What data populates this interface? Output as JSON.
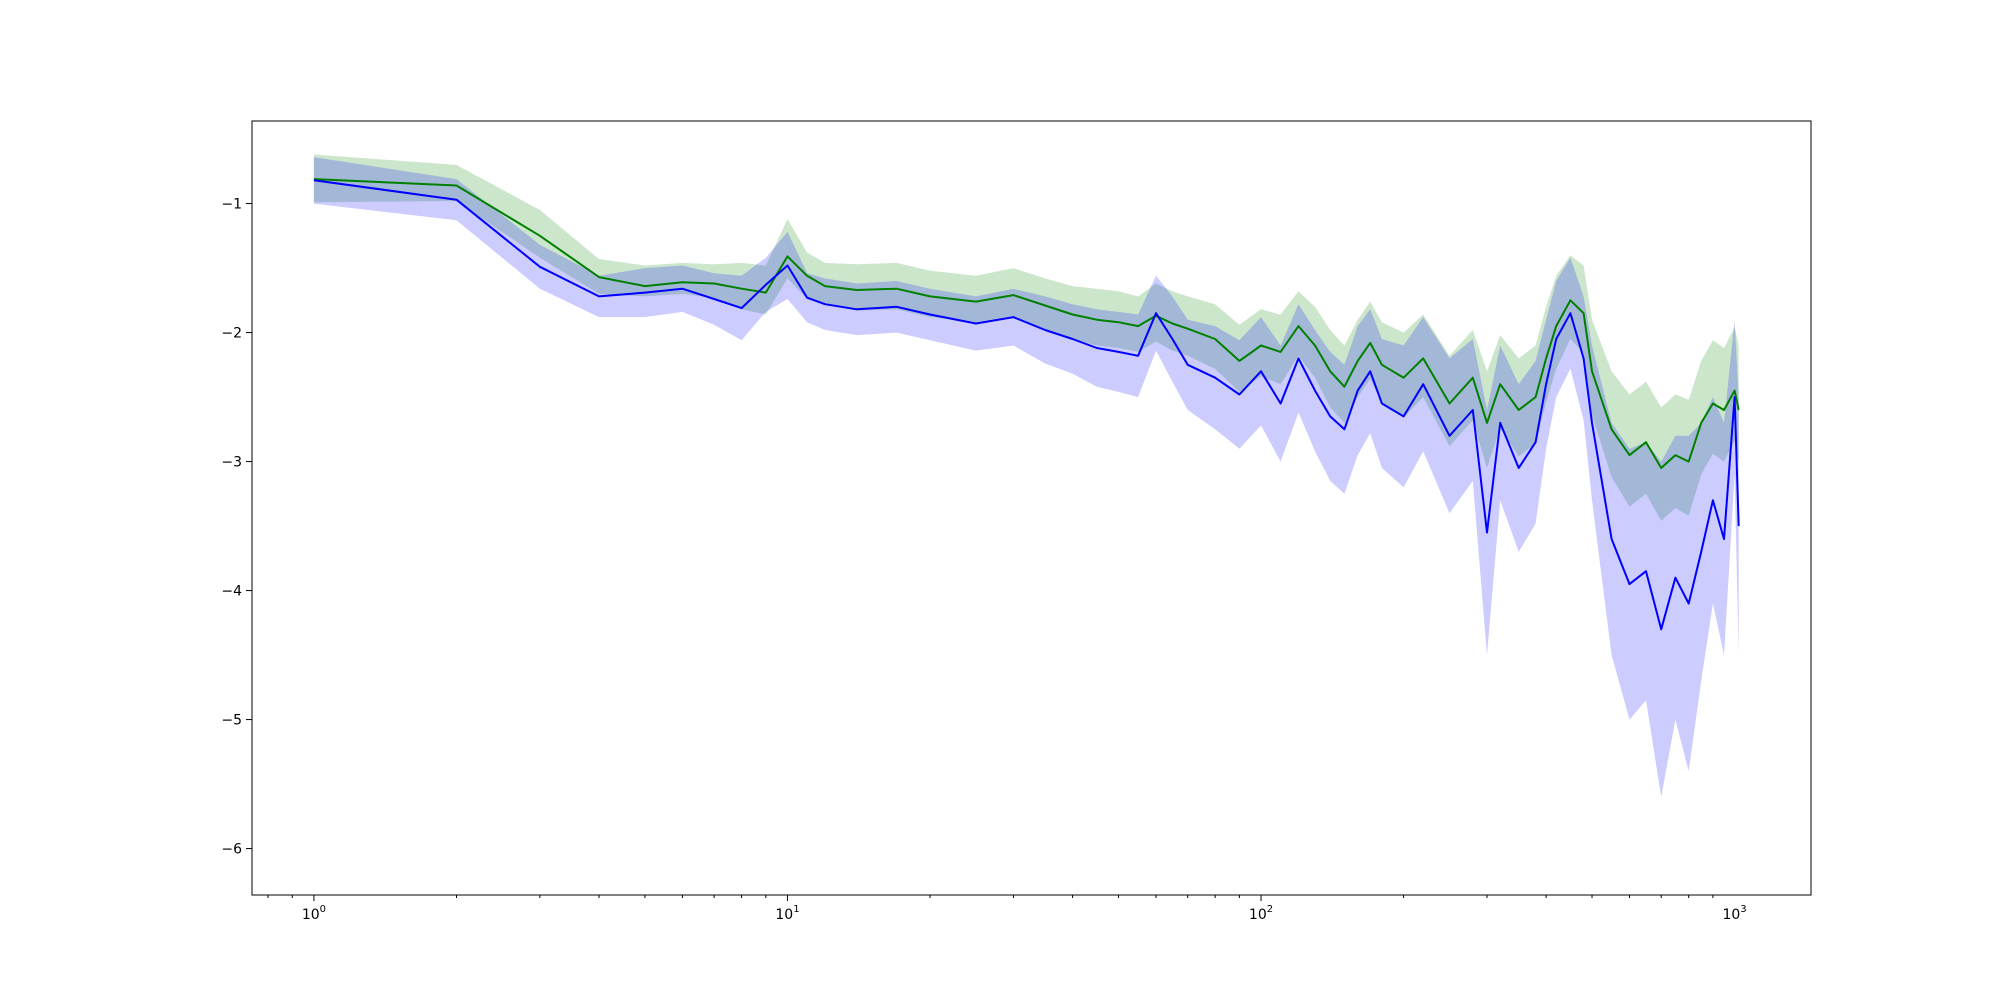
{
  "chart_data": {
    "type": "line",
    "title": "",
    "xlabel": "",
    "ylabel": "",
    "xscale": "log",
    "xlim": [
      0.74,
      1450
    ],
    "ylim": [
      -6.36,
      -0.36
    ],
    "grid": false,
    "legend": "none",
    "x_ticks": [
      {
        "value": 1,
        "base": "10",
        "exp": "0"
      },
      {
        "value": 10,
        "base": "10",
        "exp": "1"
      },
      {
        "value": 100,
        "base": "10",
        "exp": "2"
      },
      {
        "value": 1000,
        "base": "10",
        "exp": "3"
      }
    ],
    "y_ticks": [
      {
        "value": -1,
        "label": "−1"
      },
      {
        "value": -2,
        "label": "−2"
      },
      {
        "value": -3,
        "label": "−3"
      },
      {
        "value": -4,
        "label": "−4"
      },
      {
        "value": -5,
        "label": "−5"
      },
      {
        "value": -6,
        "label": "−6"
      }
    ],
    "x": [
      1,
      2,
      3,
      4,
      5,
      6,
      7,
      8,
      9,
      10,
      11,
      12,
      14,
      17,
      20,
      25,
      30,
      35,
      40,
      45,
      50,
      55,
      60,
      65,
      70,
      80,
      90,
      100,
      110,
      120,
      130,
      140,
      150,
      160,
      170,
      180,
      200,
      220,
      250,
      280,
      300,
      320,
      350,
      380,
      400,
      420,
      450,
      480,
      500,
      550,
      600,
      650,
      700,
      750,
      800,
      850,
      900,
      950,
      1000,
      1020
    ],
    "series": [
      {
        "color": "#008000",
        "band_color": "#008000",
        "values": [
          -0.81,
          -0.86,
          -1.25,
          -1.57,
          -1.64,
          -1.61,
          -1.62,
          -1.66,
          -1.69,
          -1.41,
          -1.56,
          -1.64,
          -1.67,
          -1.66,
          -1.72,
          -1.76,
          -1.71,
          -1.79,
          -1.86,
          -1.9,
          -1.92,
          -1.95,
          -1.87,
          -1.93,
          -1.97,
          -2.05,
          -2.22,
          -2.1,
          -2.15,
          -1.95,
          -2.1,
          -2.3,
          -2.42,
          -2.22,
          -2.08,
          -2.25,
          -2.35,
          -2.2,
          -2.55,
          -2.35,
          -2.7,
          -2.4,
          -2.6,
          -2.5,
          -2.2,
          -1.95,
          -1.75,
          -1.85,
          -2.3,
          -2.75,
          -2.95,
          -2.85,
          -3.05,
          -2.95,
          -3.0,
          -2.7,
          -2.55,
          -2.6,
          -2.45,
          -2.6
        ],
        "lower": [
          -0.99,
          -0.98,
          -1.42,
          -1.7,
          -1.72,
          -1.7,
          -1.73,
          -1.82,
          -1.86,
          -1.58,
          -1.74,
          -1.78,
          -1.83,
          -1.82,
          -1.88,
          -1.92,
          -1.87,
          -1.98,
          -2.05,
          -2.1,
          -2.12,
          -2.15,
          -2.07,
          -2.14,
          -2.18,
          -2.28,
          -2.46,
          -2.34,
          -2.4,
          -2.18,
          -2.35,
          -2.58,
          -2.7,
          -2.5,
          -2.36,
          -2.54,
          -2.66,
          -2.5,
          -2.88,
          -2.68,
          -3.05,
          -2.74,
          -2.96,
          -2.86,
          -2.54,
          -2.28,
          -2.05,
          -2.16,
          -2.64,
          -3.12,
          -3.35,
          -3.25,
          -3.46,
          -3.36,
          -3.42,
          -3.1,
          -2.94,
          -3.0,
          -2.84,
          -3.0
        ],
        "upper": [
          -0.62,
          -0.7,
          -1.05,
          -1.43,
          -1.48,
          -1.46,
          -1.47,
          -1.46,
          -1.48,
          -1.12,
          -1.38,
          -1.46,
          -1.47,
          -1.46,
          -1.52,
          -1.56,
          -1.5,
          -1.58,
          -1.64,
          -1.66,
          -1.68,
          -1.72,
          -1.62,
          -1.68,
          -1.72,
          -1.78,
          -1.94,
          -1.82,
          -1.86,
          -1.68,
          -1.8,
          -1.98,
          -2.1,
          -1.9,
          -1.76,
          -1.92,
          -2.0,
          -1.86,
          -2.18,
          -1.98,
          -2.3,
          -2.02,
          -2.2,
          -2.1,
          -1.8,
          -1.56,
          -1.4,
          -1.48,
          -1.9,
          -2.3,
          -2.48,
          -2.38,
          -2.58,
          -2.48,
          -2.52,
          -2.22,
          -2.06,
          -2.12,
          -1.96,
          -2.1
        ]
      },
      {
        "color": "#0000ff",
        "band_color": "#0000ff",
        "values": [
          -0.82,
          -0.97,
          -1.49,
          -1.72,
          -1.69,
          -1.66,
          -1.74,
          -1.81,
          -1.63,
          -1.48,
          -1.73,
          -1.78,
          -1.82,
          -1.8,
          -1.86,
          -1.93,
          -1.88,
          -1.98,
          -2.05,
          -2.12,
          -2.15,
          -2.18,
          -1.85,
          -2.05,
          -2.25,
          -2.35,
          -2.48,
          -2.3,
          -2.55,
          -2.2,
          -2.45,
          -2.65,
          -2.75,
          -2.45,
          -2.3,
          -2.55,
          -2.65,
          -2.4,
          -2.8,
          -2.6,
          -3.55,
          -2.7,
          -3.05,
          -2.85,
          -2.4,
          -2.05,
          -1.85,
          -2.2,
          -2.7,
          -3.6,
          -3.95,
          -3.85,
          -4.3,
          -3.9,
          -4.1,
          -3.7,
          -3.3,
          -3.6,
          -2.5,
          -3.5
        ],
        "lower": [
          -1.0,
          -1.13,
          -1.66,
          -1.88,
          -1.88,
          -1.84,
          -1.94,
          -2.06,
          -1.84,
          -1.74,
          -1.92,
          -1.98,
          -2.02,
          -2.0,
          -2.06,
          -2.14,
          -2.1,
          -2.24,
          -2.32,
          -2.42,
          -2.46,
          -2.5,
          -2.14,
          -2.38,
          -2.6,
          -2.75,
          -2.9,
          -2.72,
          -3.0,
          -2.62,
          -2.92,
          -3.15,
          -3.25,
          -2.95,
          -2.78,
          -3.05,
          -3.2,
          -2.92,
          -3.4,
          -3.15,
          -4.5,
          -3.3,
          -3.7,
          -3.48,
          -2.9,
          -2.5,
          -2.28,
          -2.68,
          -3.3,
          -4.5,
          -5.0,
          -4.85,
          -5.6,
          -5.0,
          -5.4,
          -4.7,
          -4.1,
          -4.5,
          -3.1,
          -4.5
        ],
        "upper": [
          -0.64,
          -0.81,
          -1.32,
          -1.56,
          -1.5,
          -1.48,
          -1.54,
          -1.56,
          -1.42,
          -1.22,
          -1.54,
          -1.58,
          -1.62,
          -1.6,
          -1.66,
          -1.72,
          -1.66,
          -1.72,
          -1.78,
          -1.82,
          -1.84,
          -1.86,
          -1.56,
          -1.72,
          -1.9,
          -1.95,
          -2.06,
          -1.88,
          -2.1,
          -1.78,
          -1.98,
          -2.15,
          -2.25,
          -1.95,
          -1.82,
          -2.05,
          -2.1,
          -1.88,
          -2.2,
          -2.05,
          -2.6,
          -2.1,
          -2.4,
          -2.22,
          -1.9,
          -1.6,
          -1.42,
          -1.72,
          -2.1,
          -2.7,
          -2.9,
          -2.85,
          -3.0,
          -2.8,
          -2.8,
          -2.7,
          -2.5,
          -2.7,
          -1.9,
          -2.5
        ]
      }
    ]
  }
}
